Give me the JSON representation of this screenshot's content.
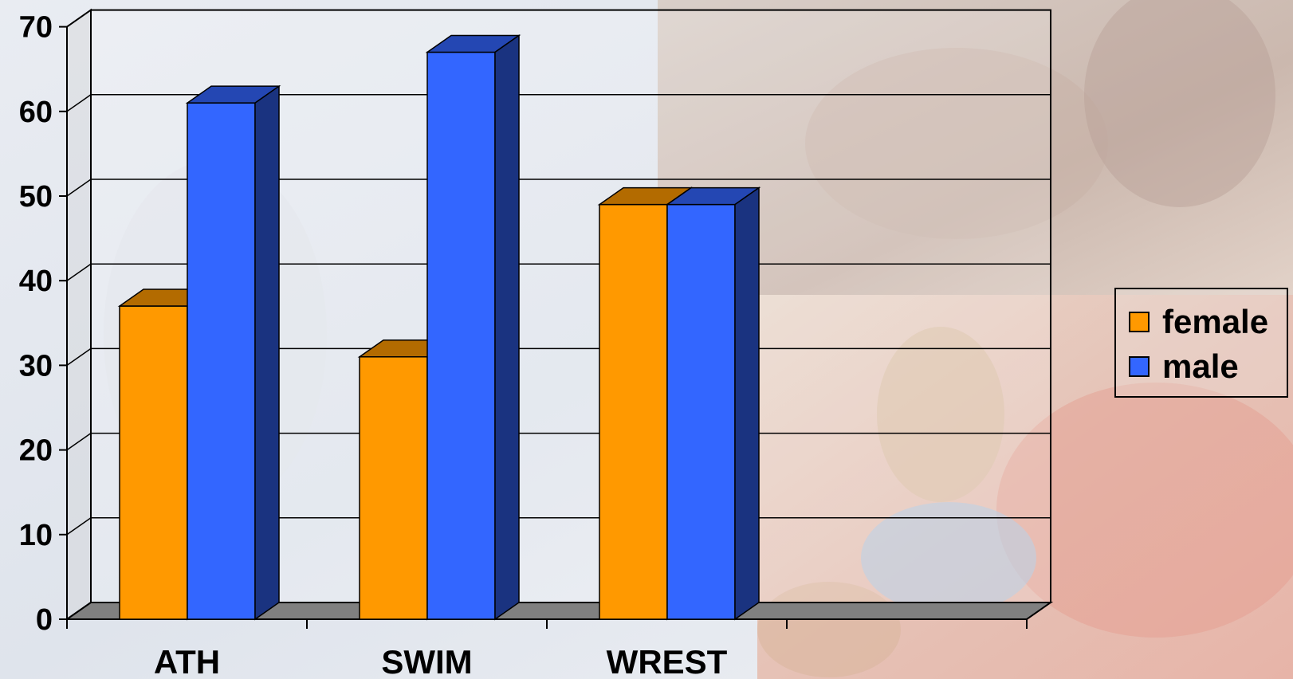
{
  "colors": {
    "female_front": "#FF9900",
    "female_top": "#B36B00",
    "female_side": "#995C00",
    "male_front": "#3366FF",
    "male_top": "#2447B3",
    "male_side": "#1A3380",
    "floor": "#808080"
  },
  "chart_data": {
    "type": "bar",
    "categories": [
      "ATH",
      "SWIM",
      "WREST",
      ""
    ],
    "series": [
      {
        "name": "female",
        "values": [
          37,
          31,
          49,
          null
        ]
      },
      {
        "name": "male",
        "values": [
          61,
          67,
          49,
          null
        ]
      }
    ],
    "ylim": [
      0,
      70
    ],
    "yticks": [
      "0",
      "10",
      "20",
      "30",
      "40",
      "50",
      "60",
      "70"
    ],
    "grid": true,
    "legend_position": "right",
    "style": "3d-clustered-column"
  },
  "legend": {
    "items": [
      {
        "label": "female",
        "color": "#FF9900"
      },
      {
        "label": "male",
        "color": "#3366FF"
      }
    ]
  }
}
